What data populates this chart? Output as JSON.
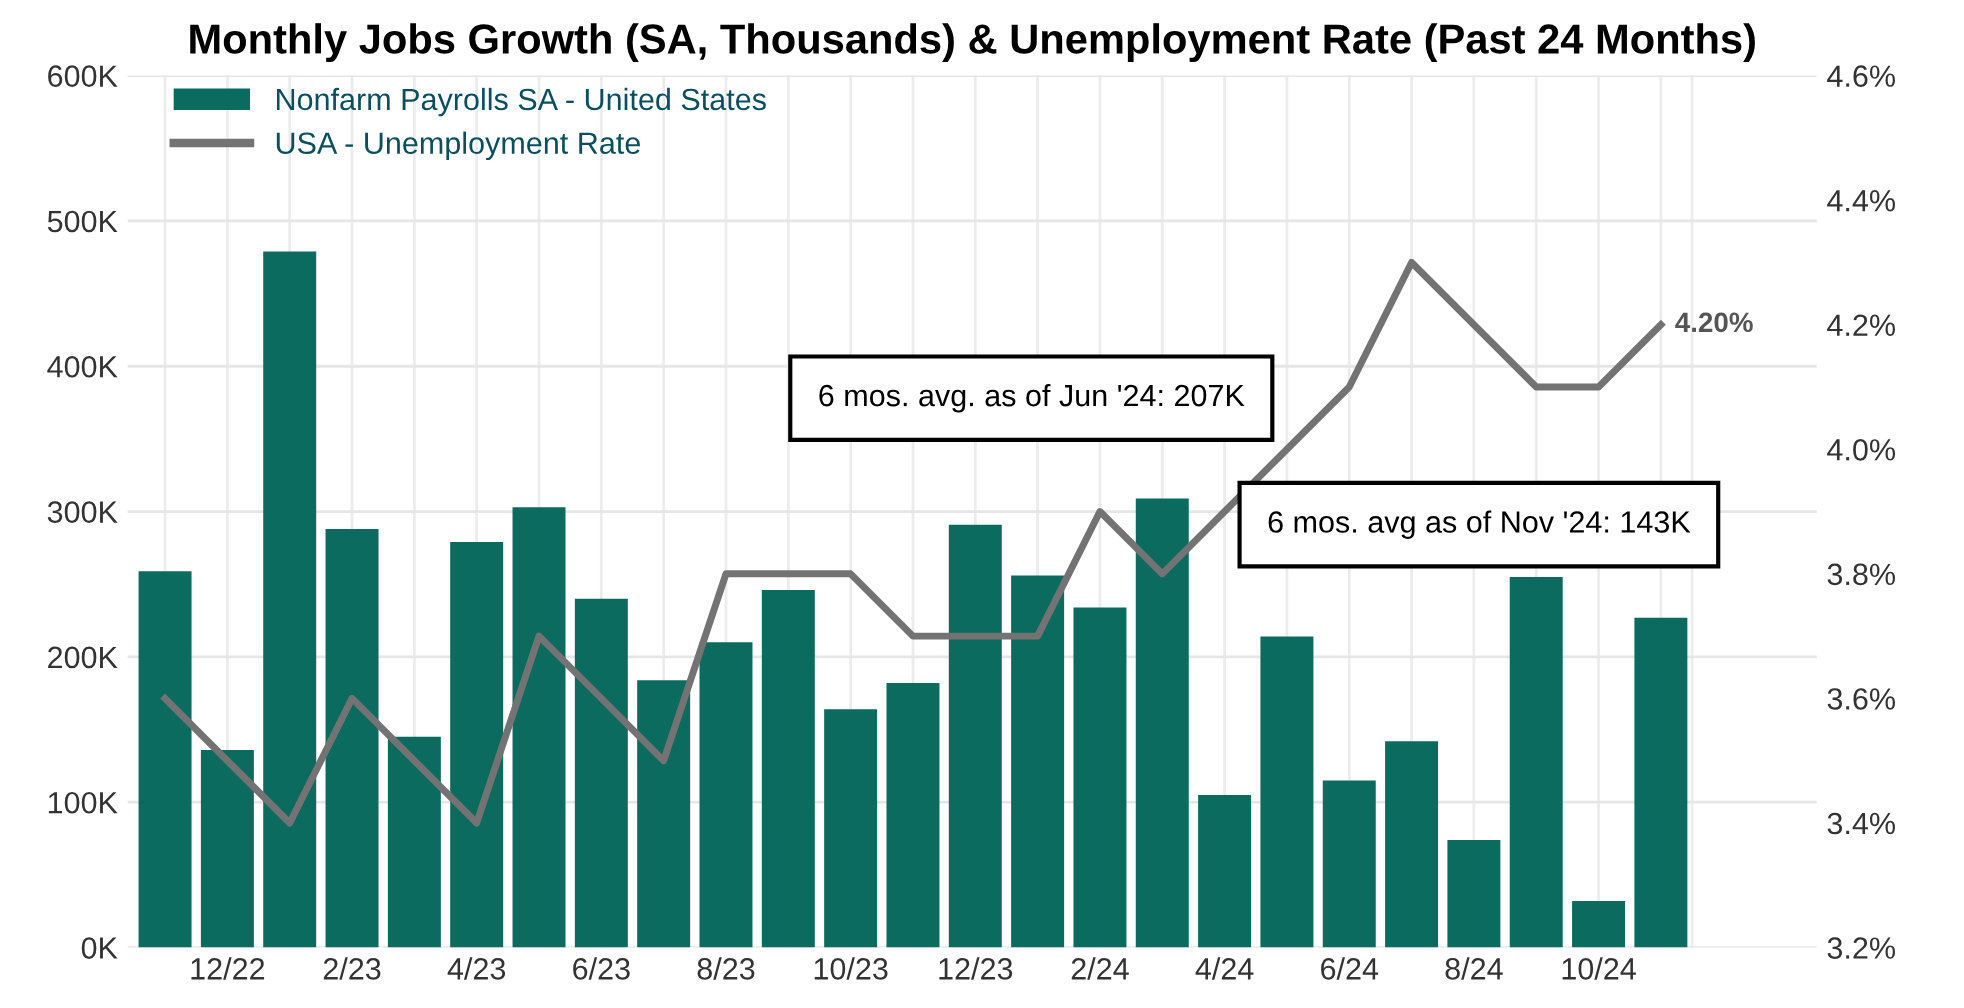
{
  "chart_data": {
    "type": "bar",
    "title": "Monthly Jobs Growth (SA, Thousands) & Unemployment Rate (Past 24 Months)",
    "categories": [
      null,
      "12/22",
      null,
      "2/23",
      null,
      "4/23",
      null,
      "6/23",
      null,
      "8/23",
      null,
      "10/23",
      null,
      "12/23",
      null,
      "2/24",
      null,
      "4/24",
      null,
      "6/24",
      null,
      "8/24",
      null,
      "10/24",
      null
    ],
    "series": [
      {
        "name": "Nonfarm Payrolls SA - United States",
        "color": "#0b6b5e",
        "values": [
          259,
          136,
          479,
          288,
          145,
          279,
          303,
          240,
          184,
          210,
          246,
          164,
          182,
          291,
          256,
          234,
          309,
          105,
          214,
          115,
          142,
          74,
          255,
          32,
          227
        ]
      },
      {
        "name": "USA - Unemployment Rate",
        "type": "line",
        "axis": "y2",
        "color": "#737373",
        "marker": "none",
        "line_style": "solid",
        "values": [
          3.6,
          3.5,
          3.4,
          3.6,
          3.5,
          3.4,
          3.7,
          3.6,
          3.5,
          3.8,
          3.8,
          3.8,
          3.7,
          3.7,
          3.7,
          3.9,
          3.8,
          3.9,
          4.0,
          4.1,
          4.3,
          4.2,
          4.1,
          4.1,
          4.2
        ],
        "value_labels": [
          null,
          null,
          null,
          null,
          null,
          null,
          null,
          null,
          null,
          null,
          null,
          null,
          null,
          null,
          null,
          null,
          null,
          null,
          null,
          null,
          null,
          null,
          null,
          null,
          "4.20%"
        ]
      }
    ],
    "ylim": [
      0,
      600
    ],
    "yticks": [
      {
        "value": 0,
        "label": "0K"
      },
      {
        "value": 100,
        "label": "100K"
      },
      {
        "value": 200,
        "label": "200K"
      },
      {
        "value": 300,
        "label": "300K"
      },
      {
        "value": 400,
        "label": "400K"
      },
      {
        "value": 500,
        "label": "500K"
      },
      {
        "value": 600,
        "label": "600K"
      }
    ],
    "y2lim": [
      3.2,
      4.6
    ],
    "y2ticks": [
      {
        "value": 3.2,
        "label": "3.2%"
      },
      {
        "value": 3.4,
        "label": "3.4%"
      },
      {
        "value": 3.6,
        "label": "3.6%"
      },
      {
        "value": 3.8,
        "label": "3.8%"
      },
      {
        "value": 4.0,
        "label": "4.0%"
      },
      {
        "value": 4.2,
        "label": "4.2%"
      },
      {
        "value": 4.4,
        "label": "4.4%"
      },
      {
        "value": 4.6,
        "label": "4.6%"
      }
    ],
    "annotations": [
      "6 mos. avg. as of Jun '24: 207K",
      "6 mos. avg as of Nov '24: 143K"
    ],
    "grid": true,
    "legend": "top left"
  }
}
